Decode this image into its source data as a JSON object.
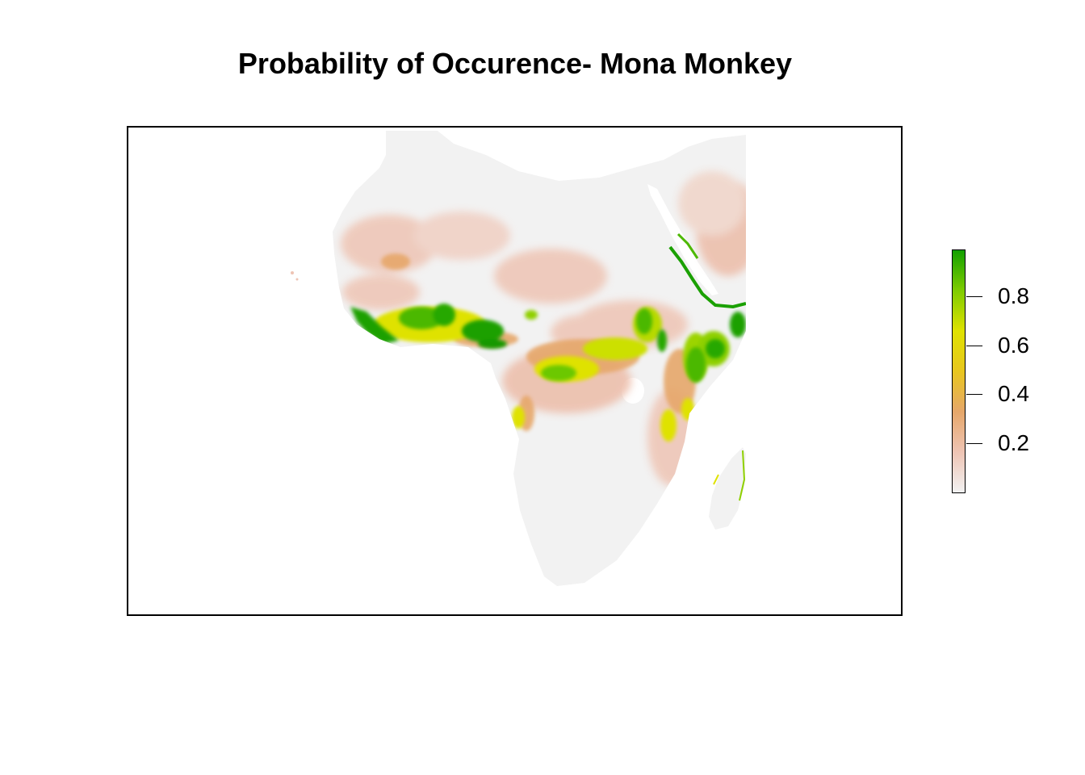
{
  "title": "Probability of Occurence- Mona Monkey",
  "map": {
    "region": "Africa",
    "value_name": "Probability of occurrence",
    "value_range": [
      0.0,
      1.0
    ],
    "high_regions": [
      "West African coast (Guinea to Nigeria)",
      "Cameroon / central African belt",
      "East African coast and Red Sea coast",
      "Ethiopian highlands"
    ]
  },
  "legend": {
    "min": 0.0,
    "max": 1.0,
    "ticks": [
      {
        "value": 0.8,
        "label": "0.8"
      },
      {
        "value": 0.6,
        "label": "0.6"
      },
      {
        "value": 0.4,
        "label": "0.4"
      },
      {
        "value": 0.2,
        "label": "0.2"
      }
    ],
    "colors": [
      "#f2f2f2",
      "#eec4b4",
      "#e6a76a",
      "#e8c61e",
      "#dfe200",
      "#7fcc00",
      "#12a000"
    ]
  },
  "colors": {
    "land_background": "#f2f2f2",
    "low": "#eec4b4",
    "mid": "#e6a76a",
    "yellow": "#e8c61e",
    "lime": "#8fd000",
    "high": "#1aa000"
  }
}
